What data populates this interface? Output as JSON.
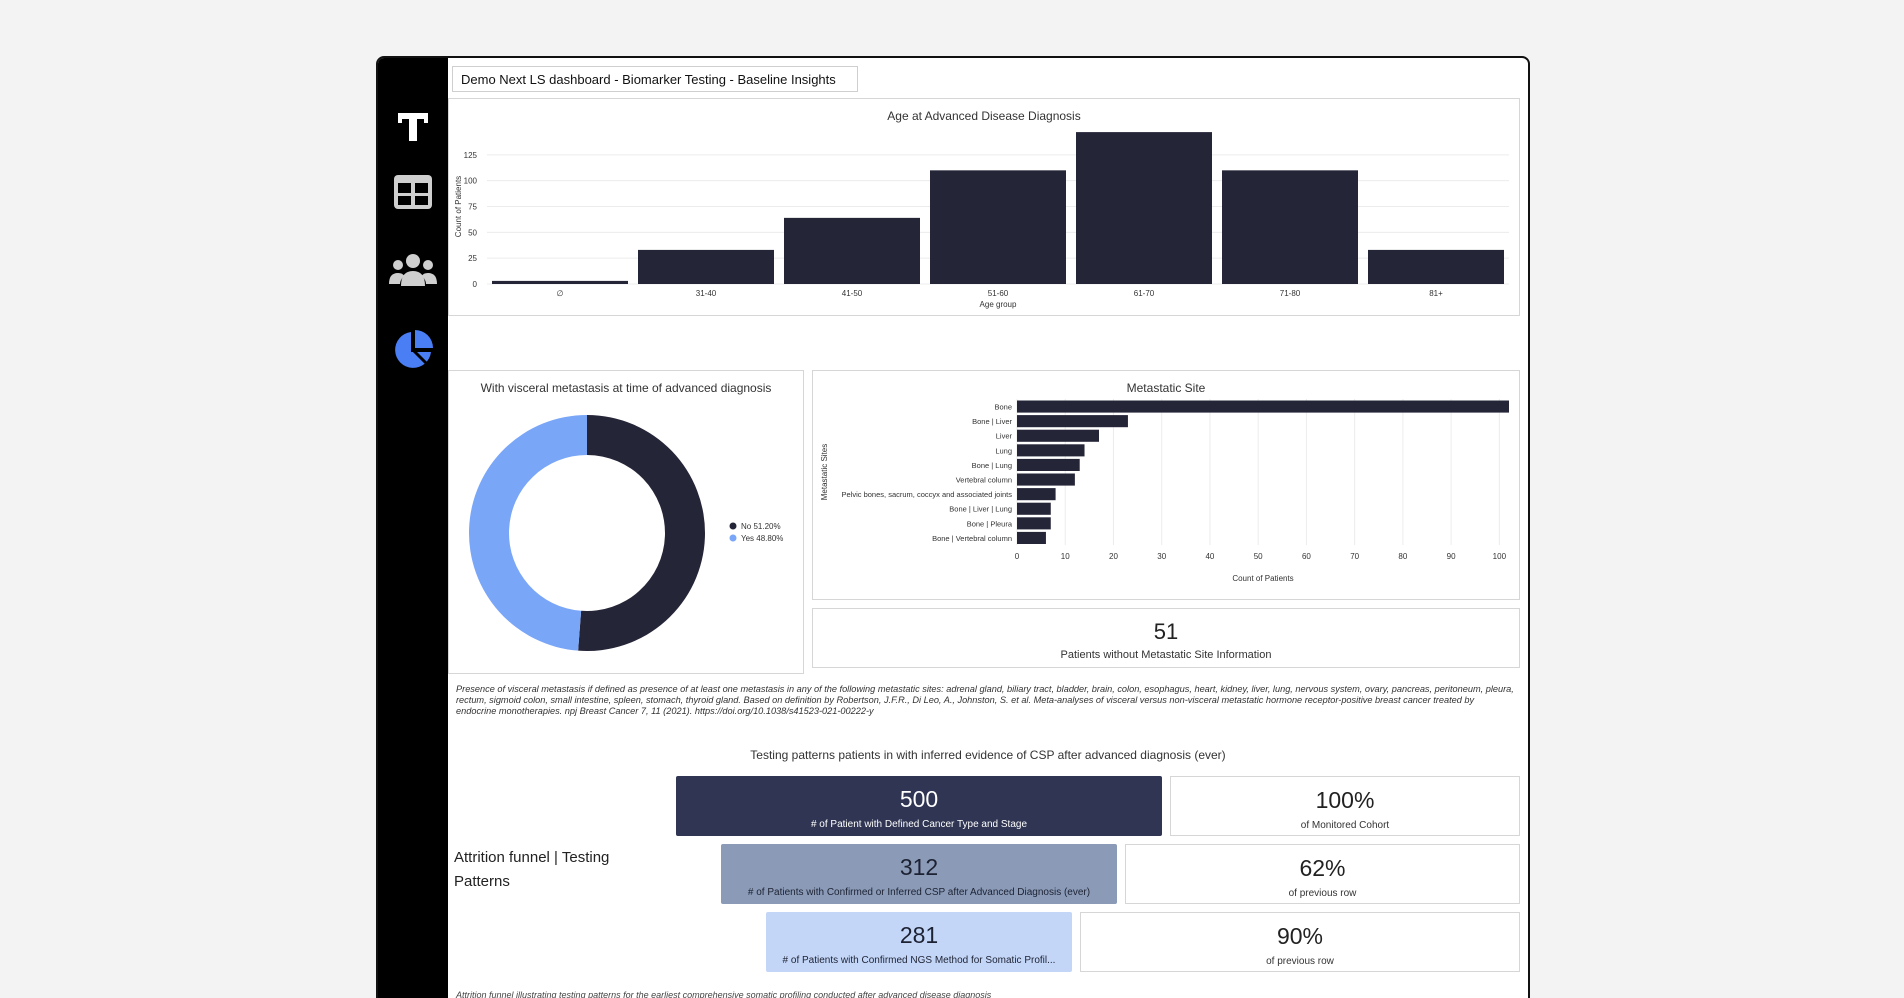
{
  "dashboard": {
    "title": "Demo Next LS dashboard - Biomarker Testing - Baseline Insights"
  },
  "sidebar": {
    "items": [
      {
        "name": "logo",
        "icon": "t-logo-icon"
      },
      {
        "name": "tables",
        "icon": "table-icon"
      },
      {
        "name": "patients",
        "icon": "users-icon"
      },
      {
        "name": "analytics",
        "icon": "pie-chart-icon",
        "active": true,
        "color": "#4a7ef5"
      }
    ]
  },
  "age_chart": {
    "title": "Age at Advanced Disease Diagnosis",
    "chart_data": {
      "type": "bar",
      "categories": [
        "∅",
        "31-40",
        "41-50",
        "51-60",
        "61-70",
        "71-80",
        "81+"
      ],
      "values": [
        3,
        33,
        64,
        110,
        147,
        110,
        33
      ],
      "xlabel": "Age group",
      "ylabel": "Count of Patients",
      "yticks": [
        0,
        25,
        50,
        75,
        100,
        125
      ],
      "ylim": [
        0,
        150
      ],
      "color": "#252538"
    }
  },
  "visceral_chart": {
    "title": "With visceral metastasis at time of advanced diagnosis",
    "chart_data": {
      "type": "pie",
      "labels": [
        "No",
        "Yes"
      ],
      "values": [
        51.2,
        48.8
      ],
      "legend": [
        "No 51.20%",
        "Yes 48.80%"
      ],
      "colors": [
        "#252538",
        "#7aa6f8"
      ]
    }
  },
  "metastatic_chart": {
    "title": "Metastatic Site",
    "chart_data": {
      "type": "bar",
      "orientation": "horizontal",
      "categories": [
        "Bone",
        "Bone | Liver",
        "Liver",
        "Lung",
        "Bone | Lung",
        "Vertebral column",
        "Pelvic bones, sacrum, coccyx and associated joints",
        "Bone | Liver | Lung",
        "Bone | Pleura",
        "Bone | Vertebral column"
      ],
      "values": [
        102,
        23,
        17,
        14,
        13,
        12,
        8,
        7,
        7,
        6
      ],
      "xlabel": "Count of Patients",
      "ylabel": "Metastatic Sites",
      "xticks": [
        0,
        10,
        20,
        30,
        40,
        50,
        60,
        70,
        80,
        90,
        100
      ],
      "xlim": [
        0,
        102
      ],
      "color": "#252538"
    }
  },
  "kpi_missing": {
    "value": "51",
    "label": "Patients without Metastatic Site Information"
  },
  "note": "Presence of visceral metastasis if defined as presence of at least one metastasis in any of the following metastatic sites: adrenal gland, biliary tract, bladder, brain, colon, esophagus, heart, kidney, liver, lung, nervous system, ovary, pancreas, peritoneum, pleura, rectum, sigmoid colon, small intestine, spleen, stomach, thyroid gland. Based on definition by Robertson, J.F.R., Di Leo, A., Johnston, S. et al. Meta-analyses of visceral versus non-visceral metastatic hormone receptor-positive breast cancer treated by endocrine monotherapies. npj Breast Cancer 7, 11 (2021). https://doi.org/10.1038/s41523-021-00222-y",
  "testing": {
    "title": "Testing patterns patients in with inferred evidence of CSP after advanced diagnosis (ever)",
    "funnel_label": "Attrition funnel | Testing Patterns",
    "rows": [
      {
        "value": "500",
        "label": "# of Patient with Defined Cancer Type and Stage",
        "pct": "100%",
        "pct_label": "of Monitored Cohort",
        "color": "#2f3552",
        "text_color": "#ffffff"
      },
      {
        "value": "312",
        "label": "# of Patients with Confirmed or Inferred CSP after Advanced Diagnosis (ever)",
        "pct": "62%",
        "pct_label": "of previous row",
        "color": "#8b9bb7",
        "text_color": "#1d2233"
      },
      {
        "value": "281",
        "label": "# of Patients with Confirmed NGS Method for Somatic Profil...",
        "pct": "90%",
        "pct_label": "of previous row",
        "color": "#c3d6f7",
        "text_color": "#1d2233"
      }
    ]
  },
  "bottom_note": "Attrition funnel illustrating testing patterns for the earliest comprehensive somatic profiling conducted after advanced disease diagnosis"
}
